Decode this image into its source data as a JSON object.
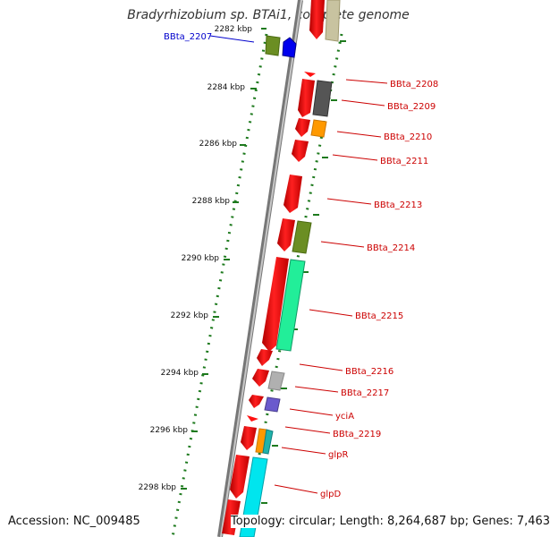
{
  "title": "Bradyrhizobium sp. BTAi1, complete genome",
  "accession": "Accession: NC_009485",
  "topology": "Topology: circular; Length: 8,264,687 bp; Genes: 7,463",
  "colors": {
    "backbone": "#9a9a9a",
    "ruler_ticks": "#1e7a1e",
    "label_red": "#cc0000",
    "label_blue": "#0000cc"
  },
  "ruler": [
    "2282 kbp",
    "2284 kbp",
    "2286 kbp",
    "2288 kbp",
    "2290 kbp",
    "2292 kbp",
    "2294 kbp",
    "2296 kbp",
    "2298 kbp"
  ],
  "genes": [
    {
      "label": "BBta_2207",
      "color": "blue"
    },
    {
      "label": "BBta_2208",
      "color": "red"
    },
    {
      "label": "BBta_2209",
      "color": "red"
    },
    {
      "label": "BBta_2210",
      "color": "red"
    },
    {
      "label": "BBta_2211",
      "color": "red"
    },
    {
      "label": "BBta_2213",
      "color": "red"
    },
    {
      "label": "BBta_2214",
      "color": "red"
    },
    {
      "label": "BBta_2215",
      "color": "red"
    },
    {
      "label": "BBta_2216",
      "color": "red"
    },
    {
      "label": "BBta_2217",
      "color": "red"
    },
    {
      "label": "yciA",
      "color": "red"
    },
    {
      "label": "BBta_2219",
      "color": "red"
    },
    {
      "label": "glpR",
      "color": "red"
    },
    {
      "label": "glpD",
      "color": "red"
    }
  ]
}
